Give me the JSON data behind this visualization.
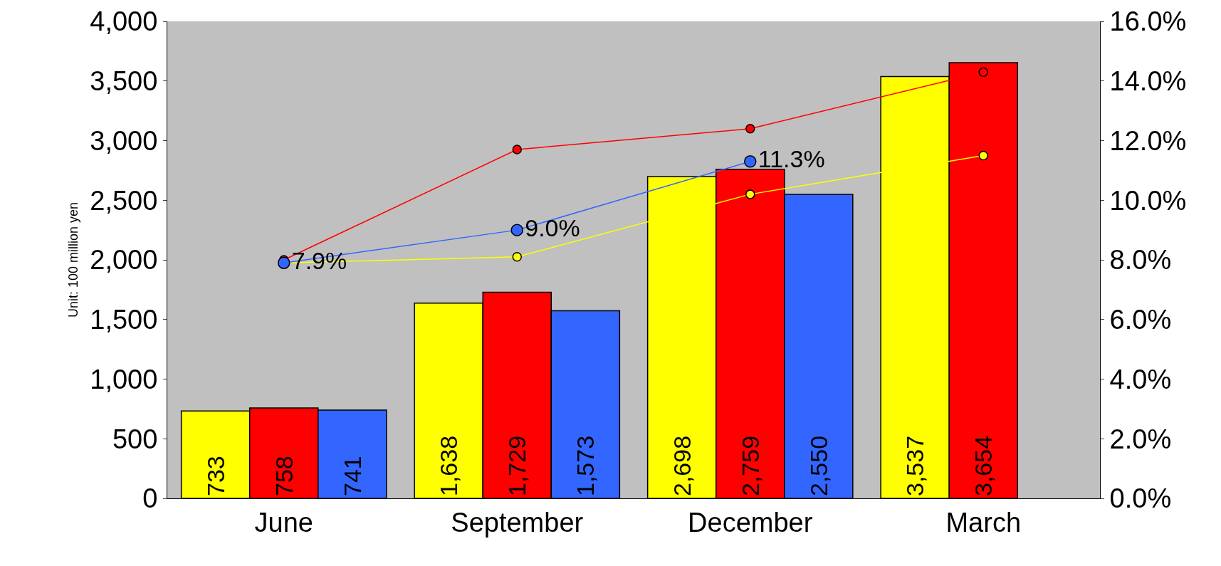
{
  "chart_data": {
    "type": "bar",
    "ylabel": "Unit: 100 million yen",
    "categories": [
      "June",
      "September",
      "December",
      "March"
    ],
    "series": [
      {
        "color": "#ffff00",
        "values": [
          733,
          1638,
          2698,
          3537
        ],
        "value_labels": [
          "733",
          "1,638",
          "2,698",
          "3,537"
        ]
      },
      {
        "color": "#ff0000",
        "values": [
          758,
          1729,
          2759,
          3654
        ],
        "value_labels": [
          "758",
          "1,729",
          "2,759",
          "3,654"
        ]
      },
      {
        "color": "#3366ff",
        "values": [
          741,
          1573,
          2550,
          null
        ],
        "value_labels": [
          "741",
          "1,573",
          "2,550",
          null
        ]
      },
      {
        "type": "line",
        "axis": "y2",
        "color": "#ff0000",
        "marker": "circle",
        "values": [
          8.0,
          11.7,
          12.4,
          14.3
        ]
      },
      {
        "type": "line",
        "axis": "y2",
        "color": "#ffff00",
        "marker": "circle",
        "values": [
          7.9,
          8.1,
          10.2,
          11.5
        ]
      },
      {
        "type": "line",
        "axis": "y2",
        "color": "#3366ff",
        "marker": "circle",
        "values": [
          7.9,
          9.0,
          11.3,
          null
        ],
        "value_labels": [
          "7.9%",
          "9.0%",
          "11.3%",
          null
        ]
      }
    ],
    "ylim": [
      0,
      4000
    ],
    "yticks": [
      0,
      500,
      {
        "value": 1000,
        "label": "1,000"
      },
      {
        "value": 1500,
        "label": "1,500"
      },
      {
        "value": 2000,
        "label": "2,000"
      },
      {
        "value": 2500,
        "label": "2,500"
      },
      {
        "value": 3000,
        "label": "3,000"
      },
      {
        "value": 3500,
        "label": "3,500"
      },
      {
        "value": 4000,
        "label": "4,000"
      }
    ],
    "y2lim": [
      0,
      16
    ],
    "y2ticks": [
      {
        "value": 0,
        "label": "0.0%"
      },
      {
        "value": 2,
        "label": "2.0%"
      },
      {
        "value": 4,
        "label": "4.0%"
      },
      {
        "value": 6,
        "label": "6.0%"
      },
      {
        "value": 8,
        "label": "8.0%"
      },
      {
        "value": 10,
        "label": "10.0%"
      },
      {
        "value": 12,
        "label": "12.0%"
      },
      {
        "value": 14,
        "label": "14.0%"
      },
      {
        "value": 16,
        "label": "16.0%"
      }
    ],
    "grid": false
  }
}
